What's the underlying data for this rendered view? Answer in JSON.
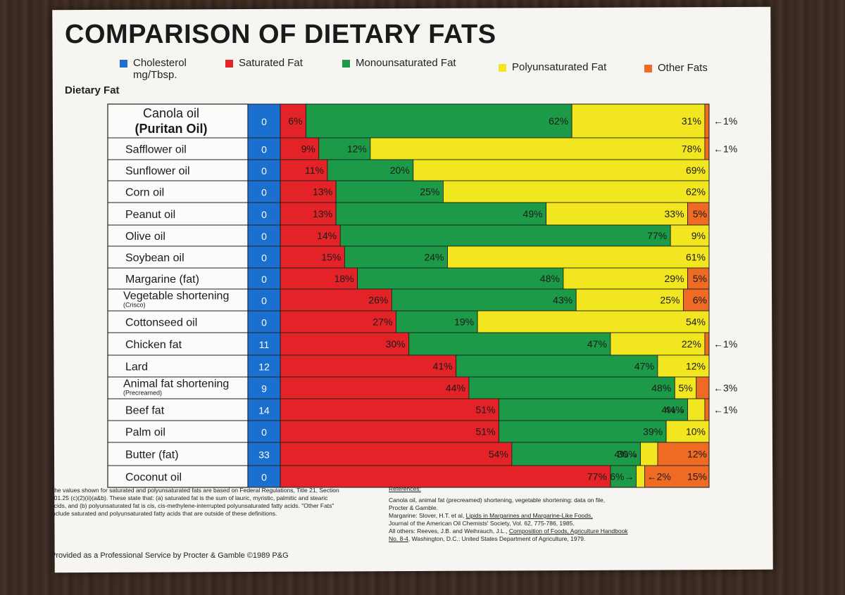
{
  "title": "COMPARISON OF DIETARY FATS",
  "legend": [
    {
      "label": "Cholesterol",
      "label2": "mg/Tbsp.",
      "color": "#1a6fcf"
    },
    {
      "label": "Saturated Fat",
      "label2": "",
      "color": "#e32328"
    },
    {
      "label": "Monounsaturated Fat",
      "label2": "",
      "color": "#1c9a48"
    },
    {
      "label": "Polyunsaturated Fat",
      "label2": "",
      "color": "#f2e620"
    },
    {
      "label": "Other Fats",
      "label2": "",
      "color": "#ef6b23"
    }
  ],
  "row_header": "Dietary Fat",
  "chart_data": {
    "type": "bar",
    "stacked": true,
    "orientation": "horizontal",
    "title": "COMPARISON OF DIETARY FATS",
    "colors": {
      "cholesterol": "#1a6fcf",
      "saturated": "#e32328",
      "mono": "#1c9a48",
      "poly": "#f2e620",
      "other": "#ef6b23"
    },
    "series_names": [
      "Saturated Fat",
      "Monounsaturated Fat",
      "Polyunsaturated Fat",
      "Other Fats"
    ],
    "rows": [
      {
        "name": "Canola oil",
        "name2": "(Puritan Oil)",
        "name_style": "big",
        "cholesterol": "0",
        "sat": 6,
        "mono": 62,
        "poly": 31,
        "other": 1,
        "sat_label": "6%",
        "mono_label": "62%",
        "poly_label": "31%",
        "other_label": "",
        "callout": "←1%"
      },
      {
        "name": "Safflower oil",
        "name2": "",
        "name_style": "normal",
        "cholesterol": "0",
        "sat": 9,
        "mono": 12,
        "poly": 78,
        "other": 1,
        "sat_label": "9%",
        "mono_label": "12%",
        "poly_label": "78%",
        "other_label": "",
        "callout": "←1%"
      },
      {
        "name": "Sunflower oil",
        "name2": "",
        "name_style": "normal",
        "cholesterol": "0",
        "sat": 11,
        "mono": 20,
        "poly": 69,
        "other": 0,
        "sat_label": "11%",
        "mono_label": "20%",
        "poly_label": "69%",
        "other_label": "",
        "callout": ""
      },
      {
        "name": "Corn oil",
        "name2": "",
        "name_style": "normal",
        "cholesterol": "0",
        "sat": 13,
        "mono": 25,
        "poly": 62,
        "other": 0,
        "sat_label": "13%",
        "mono_label": "25%",
        "poly_label": "62%",
        "other_label": "",
        "callout": ""
      },
      {
        "name": "Peanut oil",
        "name2": "",
        "name_style": "normal",
        "cholesterol": "0",
        "sat": 13,
        "mono": 49,
        "poly": 33,
        "other": 5,
        "sat_label": "13%",
        "mono_label": "49%",
        "poly_label": "33%",
        "other_label": "5%",
        "callout": ""
      },
      {
        "name": "Olive oil",
        "name2": "",
        "name_style": "normal",
        "cholesterol": "0",
        "sat": 14,
        "mono": 77,
        "poly": 9,
        "other": 0,
        "sat_label": "14%",
        "mono_label": "77%",
        "poly_label": "9%",
        "other_label": "",
        "callout": ""
      },
      {
        "name": "Soybean oil",
        "name2": "",
        "name_style": "normal",
        "cholesterol": "0",
        "sat": 15,
        "mono": 24,
        "poly": 61,
        "other": 0,
        "sat_label": "15%",
        "mono_label": "24%",
        "poly_label": "61%",
        "other_label": "",
        "callout": ""
      },
      {
        "name": "Margarine (fat)",
        "name2": "",
        "name_style": "normal",
        "cholesterol": "0",
        "sat": 18,
        "mono": 48,
        "poly": 29,
        "other": 5,
        "sat_label": "18%",
        "mono_label": "48%",
        "poly_label": "29%",
        "other_label": "5%",
        "callout": ""
      },
      {
        "name": "Vegetable shortening",
        "name2": "(Crisco)",
        "name_style": "sub",
        "cholesterol": "0",
        "sat": 26,
        "mono": 43,
        "poly": 25,
        "other": 6,
        "sat_label": "26%",
        "mono_label": "43%",
        "poly_label": "25%",
        "other_label": "6%",
        "callout": ""
      },
      {
        "name": "Cottonseed oil",
        "name2": "",
        "name_style": "normal",
        "cholesterol": "0",
        "sat": 27,
        "mono": 19,
        "poly": 54,
        "other": 0,
        "sat_label": "27%",
        "mono_label": "19%",
        "poly_label": "54%",
        "other_label": "",
        "callout": ""
      },
      {
        "name": "Chicken fat",
        "name2": "",
        "name_style": "normal",
        "cholesterol": "11",
        "sat": 30,
        "mono": 47,
        "poly": 22,
        "other": 1,
        "sat_label": "30%",
        "mono_label": "47%",
        "poly_label": "22%",
        "other_label": "",
        "callout": "←1%"
      },
      {
        "name": "Lard",
        "name2": "",
        "name_style": "normal",
        "cholesterol": "12",
        "sat": 41,
        "mono": 47,
        "poly": 12,
        "other": 0,
        "sat_label": "41%",
        "mono_label": "47%",
        "poly_label": "12%",
        "other_label": "",
        "callout": ""
      },
      {
        "name": "Animal fat shortening",
        "name2": "(Precreamed)",
        "name_style": "sub",
        "cholesterol": "9",
        "sat": 44,
        "mono": 48,
        "poly": 5,
        "other": 3,
        "sat_label": "44%",
        "mono_label": "48%",
        "poly_label": "5%",
        "other_label": "",
        "callout": "←3%"
      },
      {
        "name": "Beef fat",
        "name2": "",
        "name_style": "normal",
        "cholesterol": "14",
        "sat": 51,
        "mono": 44,
        "poly": 4,
        "other": 1,
        "sat_label": "51%",
        "mono_label": "44%",
        "poly_label": "",
        "poly_inside_label": "4%→",
        "other_label": "",
        "callout": "←1%"
      },
      {
        "name": "Palm oil",
        "name2": "",
        "name_style": "normal",
        "cholesterol": "0",
        "sat": 51,
        "mono": 39,
        "poly": 10,
        "other": 0,
        "sat_label": "51%",
        "mono_label": "39%",
        "poly_label": "10%",
        "other_label": "",
        "callout": ""
      },
      {
        "name": "Butter (fat)",
        "name2": "",
        "name_style": "normal",
        "cholesterol": "33",
        "sat": 54,
        "mono": 30,
        "poly": 4,
        "other": 12,
        "sat_label": "54%",
        "mono_label": "30%",
        "poly_label": "",
        "poly_inside_label": "4%→",
        "other_label": "12%",
        "callout": ""
      },
      {
        "name": "Coconut oil",
        "name2": "",
        "name_style": "normal",
        "cholesterol": "0",
        "sat": 77,
        "mono": 6,
        "poly": 2,
        "other": 15,
        "sat_label": "77%",
        "mono_label": "",
        "mono_inside_label": "6%→",
        "poly_label": "",
        "poly_after_label": "←2%",
        "other_label": "15%",
        "callout": ""
      }
    ]
  },
  "footnote": "The values shown for saturated and polyunsaturated fats are based on Federal Regulations, Title 21, Section 101.25 (c)(2)(ii)(a&b). These state that: (a) saturated fat is the sum of lauric, myristic, palmitic and stearic acids, and (b) polyunsaturated fat is cis, cis-methylene-interrupted polyunsaturated fatty acids. \"Other Fats\" include saturated and polyunsaturated fatty acids that are outside of these definitions.",
  "references": {
    "heading": "References:",
    "line1": "Canola oil, animal fat (precreamed) shortening, vegetable shortening: data on file,",
    "line2": "Procter & Gamble.",
    "line3a": "Margarine: Slover, H.T. et al, ",
    "line3b": "Lipids in Margarines and Margarine-Like Foods,",
    "line4": "Journal of the American Oil Chemists' Society, Vol. 62, 775-786, 1985.",
    "line5a": "All others: Reeves, J.B. and Weihrauch, J.L., ",
    "line5b": "Composition of Foods, Agriculture Handbook",
    "line6a": "No. 8-4",
    "line6b": ", Washington, D.C.: United States Department of Agriculture, 1979."
  },
  "provided": "Provided as a Professional Service by Procter & Gamble ©1989 P&G"
}
